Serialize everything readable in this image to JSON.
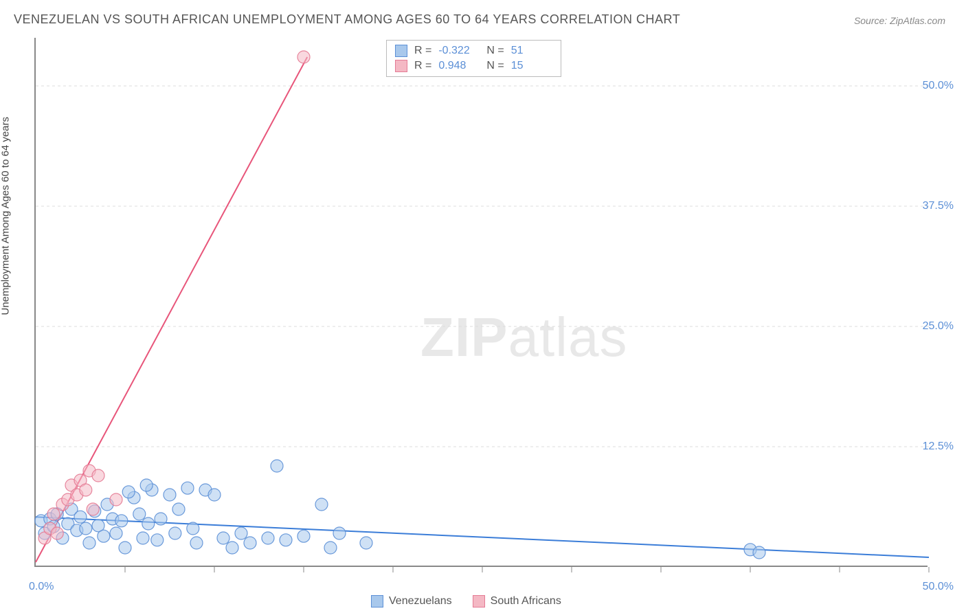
{
  "title": "VENEZUELAN VS SOUTH AFRICAN UNEMPLOYMENT AMONG AGES 60 TO 64 YEARS CORRELATION CHART",
  "source": "Source: ZipAtlas.com",
  "y_axis_label": "Unemployment Among Ages 60 to 64 years",
  "watermark_bold": "ZIP",
  "watermark_rest": "atlas",
  "chart": {
    "type": "scatter",
    "xlim": [
      0,
      50
    ],
    "ylim": [
      0,
      55
    ],
    "x_origin_label": "0.0%",
    "x_end_label": "50.0%",
    "y_ticks": [
      12.5,
      25.0,
      37.5,
      50.0
    ],
    "y_tick_labels": [
      "12.5%",
      "25.0%",
      "37.5%",
      "50.0%"
    ],
    "x_tick_positions": [
      5,
      10,
      15,
      20,
      25,
      30,
      35,
      40,
      45,
      50
    ],
    "background_color": "#ffffff",
    "grid_color": "#dddddd",
    "axis_color": "#888888",
    "series": [
      {
        "name": "Venezuelans",
        "color_fill": "#a8c8ec",
        "color_stroke": "#5b8fd6",
        "marker_radius": 9,
        "marker_opacity": 0.55,
        "line_color": "#3b7dd8",
        "line_width": 2,
        "regression": {
          "x1": 0,
          "y1": 5.2,
          "x2": 50,
          "y2": 1.0
        },
        "stats": {
          "R": "-0.322",
          "N": "51"
        },
        "points": [
          [
            0.3,
            4.8
          ],
          [
            0.5,
            3.5
          ],
          [
            0.8,
            5.0
          ],
          [
            1.0,
            4.2
          ],
          [
            1.2,
            5.5
          ],
          [
            1.5,
            3.0
          ],
          [
            1.8,
            4.5
          ],
          [
            2.0,
            6.0
          ],
          [
            2.3,
            3.8
          ],
          [
            2.5,
            5.2
          ],
          [
            2.8,
            4.0
          ],
          [
            3.0,
            2.5
          ],
          [
            3.3,
            5.8
          ],
          [
            3.5,
            4.3
          ],
          [
            3.8,
            3.2
          ],
          [
            4.0,
            6.5
          ],
          [
            4.3,
            5.0
          ],
          [
            4.5,
            3.5
          ],
          [
            4.8,
            4.8
          ],
          [
            5.0,
            2.0
          ],
          [
            5.5,
            7.2
          ],
          [
            5.8,
            5.5
          ],
          [
            6.0,
            3.0
          ],
          [
            6.3,
            4.5
          ],
          [
            6.5,
            8.0
          ],
          [
            6.8,
            2.8
          ],
          [
            7.0,
            5.0
          ],
          [
            7.5,
            7.5
          ],
          [
            7.8,
            3.5
          ],
          [
            8.0,
            6.0
          ],
          [
            8.5,
            8.2
          ],
          [
            8.8,
            4.0
          ],
          [
            9.0,
            2.5
          ],
          [
            9.5,
            8.0
          ],
          [
            10.0,
            7.5
          ],
          [
            10.5,
            3.0
          ],
          [
            11.0,
            2.0
          ],
          [
            11.5,
            3.5
          ],
          [
            12.0,
            2.5
          ],
          [
            13.0,
            3.0
          ],
          [
            13.5,
            10.5
          ],
          [
            14.0,
            2.8
          ],
          [
            15.0,
            3.2
          ],
          [
            16.0,
            6.5
          ],
          [
            16.5,
            2.0
          ],
          [
            17.0,
            3.5
          ],
          [
            18.5,
            2.5
          ],
          [
            40.0,
            1.8
          ],
          [
            40.5,
            1.5
          ],
          [
            5.2,
            7.8
          ],
          [
            6.2,
            8.5
          ]
        ]
      },
      {
        "name": "South Africans",
        "color_fill": "#f4b8c4",
        "color_stroke": "#e47a94",
        "marker_radius": 9,
        "marker_opacity": 0.55,
        "line_color": "#e8557a",
        "line_width": 2,
        "regression": {
          "x1": 0,
          "y1": 0.5,
          "x2": 15.2,
          "y2": 53
        },
        "stats": {
          "R": "0.948",
          "N": "15"
        },
        "points": [
          [
            0.5,
            3.0
          ],
          [
            0.8,
            4.0
          ],
          [
            1.0,
            5.5
          ],
          [
            1.2,
            3.5
          ],
          [
            1.5,
            6.5
          ],
          [
            1.8,
            7.0
          ],
          [
            2.0,
            8.5
          ],
          [
            2.3,
            7.5
          ],
          [
            2.5,
            9.0
          ],
          [
            2.8,
            8.0
          ],
          [
            3.0,
            10.0
          ],
          [
            3.2,
            6.0
          ],
          [
            3.5,
            9.5
          ],
          [
            4.5,
            7.0
          ],
          [
            15.0,
            53.0
          ]
        ]
      }
    ]
  },
  "legend": {
    "items": [
      {
        "label": "Venezuelans",
        "fill": "#a8c8ec",
        "stroke": "#5b8fd6"
      },
      {
        "label": "South Africans",
        "fill": "#f4b8c4",
        "stroke": "#e47a94"
      }
    ]
  }
}
